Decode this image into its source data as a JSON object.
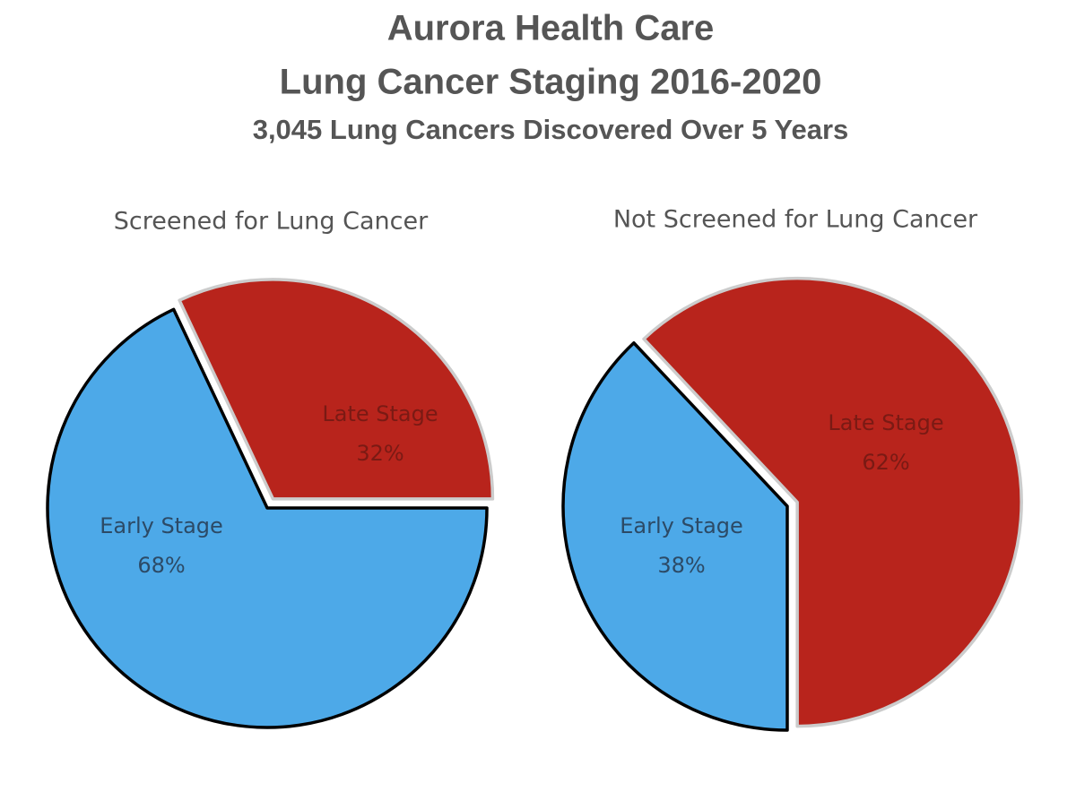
{
  "header": {
    "title": [
      "Aurora Health Care",
      "Lung Cancer Staging 2016-2020"
    ],
    "subtitle": "3,045 Lung Cancers Discovered Over 5 Years"
  },
  "chart_data": [
    {
      "type": "pie",
      "title": "Screened for Lung Cancer",
      "categories": [
        "Early Stage",
        "Late Stage"
      ],
      "values": [
        68,
        32
      ],
      "value_labels": [
        "68%",
        "32%"
      ],
      "colors": [
        "#4da9e8",
        "#b8241c"
      ]
    },
    {
      "type": "pie",
      "title": "Not Screened for Lung Cancer",
      "categories": [
        "Early Stage",
        "Late Stage"
      ],
      "values": [
        38,
        62
      ],
      "value_labels": [
        "38%",
        "62%"
      ],
      "colors": [
        "#4da9e8",
        "#b8241c"
      ]
    }
  ]
}
